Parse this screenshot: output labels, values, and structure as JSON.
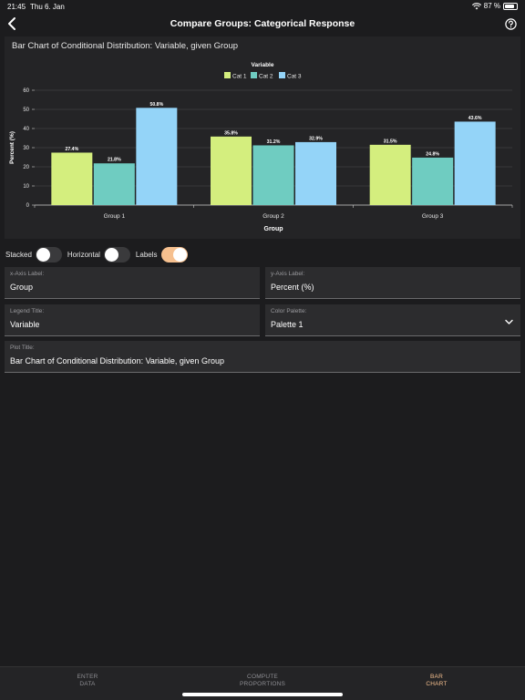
{
  "status": {
    "time": "21:45",
    "date": "Thu 6. Jan",
    "battery": "87 %",
    "battery_level": 0.87
  },
  "nav": {
    "title": "Compare Groups: Categorical Response"
  },
  "chart_card": {
    "title": "Bar Chart of Conditional Distribution: Variable, given Group"
  },
  "chart_data": {
    "type": "bar",
    "legend_title": "Variable",
    "legend_position": "top-center",
    "categories": [
      "Group 1",
      "Group 2",
      "Group 3"
    ],
    "series": [
      {
        "name": "Cat 1",
        "color": "#d4ee7e",
        "values": [
          27.4,
          35.8,
          31.5
        ],
        "labels": [
          "27.4%",
          "35.8%",
          "31.5%"
        ]
      },
      {
        "name": "Cat 2",
        "color": "#6fccc1",
        "values": [
          21.8,
          31.2,
          24.8
        ],
        "labels": [
          "21.8%",
          "31.2%",
          "24.8%"
        ]
      },
      {
        "name": "Cat 3",
        "color": "#94d4f8",
        "values": [
          50.8,
          32.9,
          43.6
        ],
        "labels": [
          "50.8%",
          "32.9%",
          "43.6%"
        ]
      }
    ],
    "xlabel": "Group",
    "ylabel": "Percent (%)",
    "ylim": [
      0,
      60
    ],
    "yticks": [
      "0",
      "10",
      "20",
      "30",
      "40",
      "50",
      "60"
    ],
    "grid": true
  },
  "toggles": {
    "stacked": {
      "label": "Stacked",
      "on": false
    },
    "horizontal": {
      "label": "Horizontal",
      "on": false
    },
    "labels": {
      "label": "Labels",
      "on": true
    }
  },
  "fields": {
    "x_axis_label": {
      "label": "x-Axis Label:",
      "value": "Group"
    },
    "y_axis_label": {
      "label": "y-Axis Label:",
      "value": "Percent (%)"
    },
    "legend_title": {
      "label": "Legend Title:",
      "value": "Variable"
    },
    "color_palette": {
      "label": "Color Palette:",
      "value": "Palette 1"
    },
    "plot_title": {
      "label": "Plot Title:",
      "value": "Bar Chart of Conditional Distribution: Variable, given Group"
    }
  },
  "tabs": [
    {
      "line1": "ENTER",
      "line2": "DATA",
      "active": false
    },
    {
      "line1": "COMPUTE",
      "line2": "PROPORTIONS",
      "active": false
    },
    {
      "line1": "BAR",
      "line2": "CHART",
      "active": true
    }
  ],
  "colors": {
    "accent": "#f6c08f",
    "background": "#1c1c1e",
    "card": "#242426"
  }
}
